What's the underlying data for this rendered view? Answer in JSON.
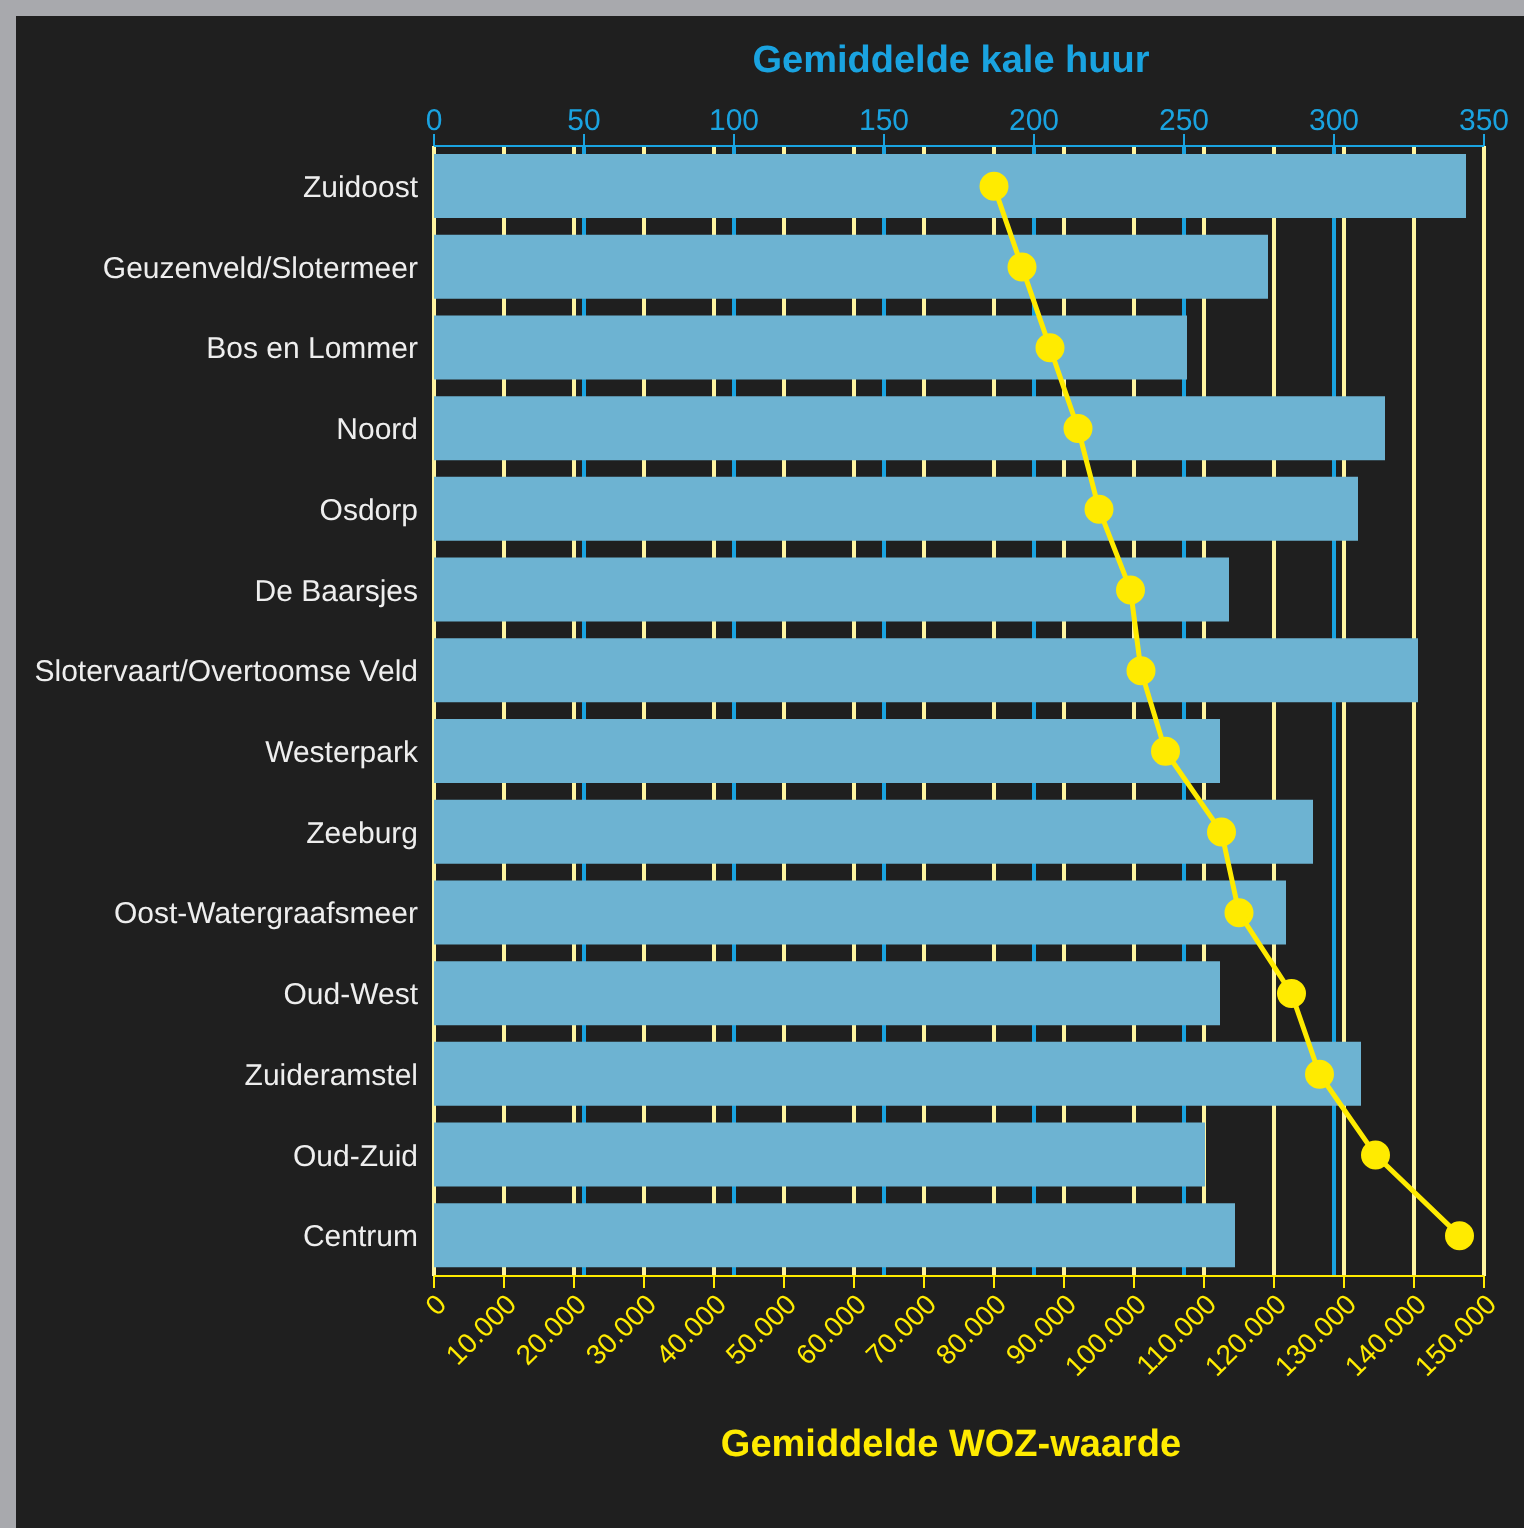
{
  "chart_data": {
    "type": "bar",
    "orientation": "horizontal",
    "xlabel": "Gemiddelde WOZ-waarde",
    "x2label": "Gemiddelde kale huur",
    "categories": [
      "Zuidoost",
      "Geuzenveld/Slotermeer",
      "Bos en Lommer",
      "Noord",
      "Osdorp",
      "De Baarsjes",
      "Slotervaart/Overtoomse Veld",
      "Westerpark",
      "Zeeburg",
      "Oost-Watergraafsmeer",
      "Oud-West",
      "Zuideramstel",
      "Oud-Zuid",
      "Centrum"
    ],
    "series": [
      {
        "axis": "x2",
        "color": "#6db3d2",
        "values": [
          344,
          278,
          251,
          317,
          308,
          265,
          328,
          262,
          293,
          284,
          262,
          309,
          257,
          267
        ]
      },
      {
        "type": "line",
        "color": "#ffeb00",
        "marker": "circle",
        "values": [
          80000,
          84000,
          88000,
          92000,
          95000,
          99500,
          101000,
          104500,
          112500,
          115000,
          122500,
          126500,
          134500,
          146500
        ]
      }
    ],
    "xlim": [
      0,
      150000
    ],
    "xticks": [
      0,
      {
        "value": 10000,
        "label": "10.000"
      },
      {
        "value": 20000,
        "label": "20.000"
      },
      {
        "value": 30000,
        "label": "30.000"
      },
      {
        "value": 40000,
        "label": "40.000"
      },
      {
        "value": 50000,
        "label": "50.000"
      },
      {
        "value": 60000,
        "label": "60.000"
      },
      {
        "value": 70000,
        "label": "70.000"
      },
      {
        "value": 80000,
        "label": "80.000"
      },
      {
        "value": 90000,
        "label": "90.000"
      },
      {
        "value": 100000,
        "label": "100.000"
      },
      {
        "value": 110000,
        "label": "110.000"
      },
      {
        "value": 120000,
        "label": "120.000"
      },
      {
        "value": 130000,
        "label": "130.000"
      },
      {
        "value": 140000,
        "label": "140.000"
      },
      {
        "value": 150000,
        "label": "150.000"
      }
    ],
    "x2lim": [
      0,
      350
    ],
    "x2ticks": [
      0,
      50,
      100,
      150,
      200,
      250,
      300,
      350
    ],
    "grid": "x",
    "legend": false
  }
}
